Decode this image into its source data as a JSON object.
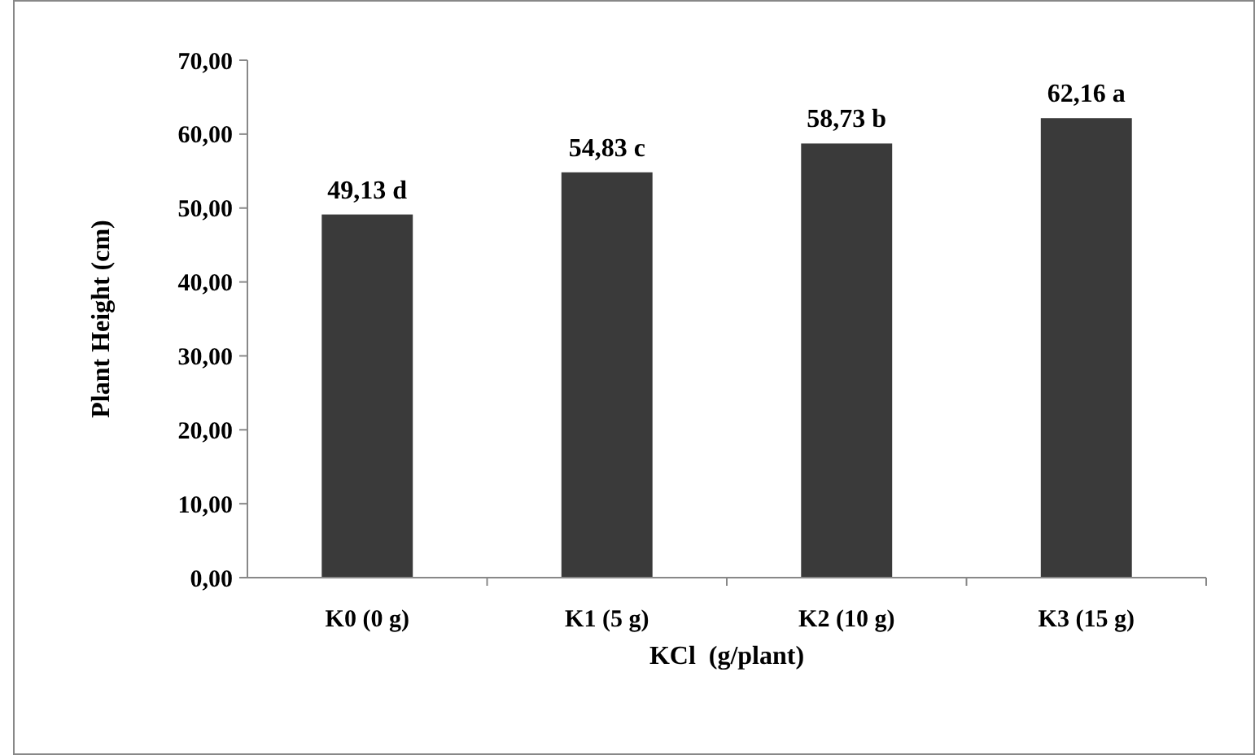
{
  "chart_data": {
    "type": "bar",
    "xlabel": "KCl  (g/plant)",
    "ylabel": "Plant Height (cm)",
    "categories": [
      "K0 (0 g)",
      "K1 (5 g)",
      "K2 (10 g)",
      "K3 (15 g)"
    ],
    "values": [
      49.13,
      54.83,
      58.73,
      62.16
    ],
    "value_labels": [
      "49,13 d",
      "54,83 c",
      "58,73 b",
      "62,16 a"
    ],
    "color": "#3a3a3a",
    "ylim": [
      0,
      70
    ],
    "yticks": [
      {
        "value": 0,
        "label": "0,00"
      },
      {
        "value": 10,
        "label": "10,00"
      },
      {
        "value": 20,
        "label": "20,00"
      },
      {
        "value": 30,
        "label": "30,00"
      },
      {
        "value": 40,
        "label": "40,00"
      },
      {
        "value": 50,
        "label": "50,00"
      },
      {
        "value": 60,
        "label": "60,00"
      },
      {
        "value": 70,
        "label": "70,00"
      }
    ],
    "grid": false
  }
}
